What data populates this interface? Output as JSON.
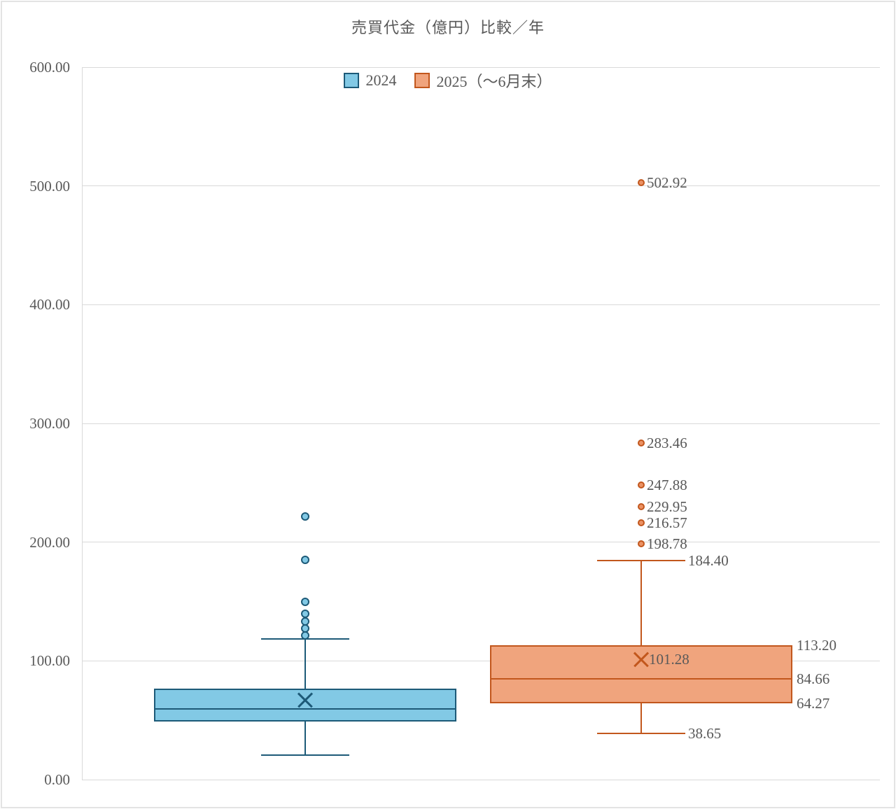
{
  "chart_data": {
    "type": "boxplot",
    "title": "売買代金（億円）比較／年",
    "legend_position": "top",
    "grid": true,
    "text_color": "#595959",
    "gridline_color": "#d9d9d9",
    "y_axis": {
      "min": 0,
      "max": 600,
      "step": 100,
      "tick_labels": [
        "0.00",
        "100.00",
        "200.00",
        "300.00",
        "400.00",
        "500.00",
        "600.00"
      ]
    },
    "series": [
      {
        "name": "2024",
        "fill": "#82c9e5",
        "stroke": "#1d5a78",
        "marker_fill": "#82c9e5",
        "stats": {
          "whisker_low": 20.5,
          "q1": 48.8,
          "median": 59.5,
          "mean": 67.2,
          "q3": 76.6,
          "whisker_high": 118.5
        },
        "outliers": [
          121.4,
          127.3,
          133.2,
          139.7,
          149.7,
          185.1,
          221.6
        ],
        "labels_shown": false
      },
      {
        "name": "2025（～6月末）",
        "fill": "#f0a47d",
        "stroke": "#c2571d",
        "marker_fill": "#ec9264",
        "stats": {
          "whisker_low": 38.65,
          "q1": 64.27,
          "median": 84.66,
          "mean": 101.28,
          "q3": 113.2,
          "whisker_high": 184.4
        },
        "outliers": [
          198.78,
          216.57,
          229.95,
          247.88,
          283.46,
          502.92
        ],
        "labels_shown": true,
        "label_format": "0.00"
      }
    ]
  }
}
